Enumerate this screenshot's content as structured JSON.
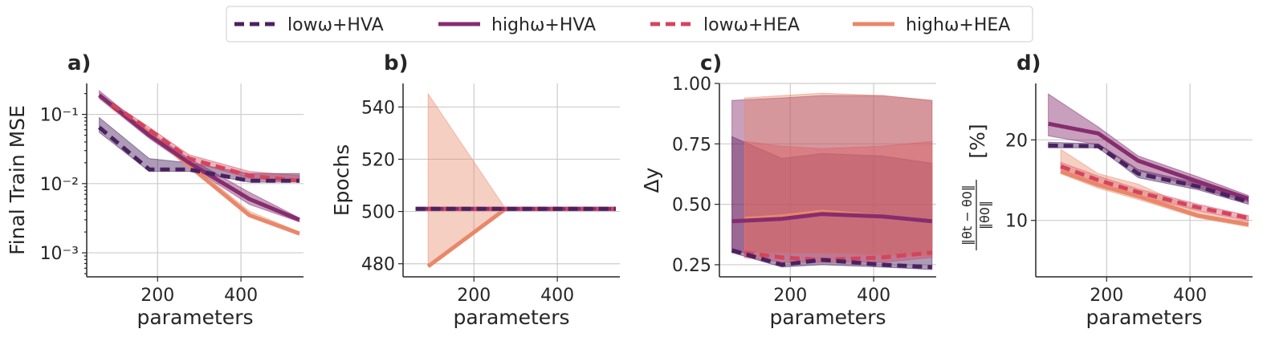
{
  "legend": [
    {
      "series": "lowHVA",
      "label": "lowω+HVA",
      "color": "#4a2260",
      "dashed": true
    },
    {
      "series": "highHVA",
      "label": "highω+HVA",
      "color": "#862d6e",
      "dashed": false
    },
    {
      "series": "lowHEA",
      "label": "lowω+HEA",
      "color": "#d4445e",
      "dashed": true
    },
    {
      "series": "highHEA",
      "label": "highω+HEA",
      "color": "#e9876a",
      "dashed": false
    }
  ],
  "chart_data": [
    {
      "panel": "a)",
      "type": "line",
      "ylabel": "Final Train MSE",
      "xlabel": "parameters",
      "yscale": "log",
      "xlim": [
        30,
        550
      ],
      "ylim": [
        0.00045,
        0.28
      ],
      "xticks": [
        200,
        400
      ],
      "xtick_labels": [
        "200",
        "400"
      ],
      "yticks": [
        0.1,
        0.01,
        0.001
      ],
      "ytick_labels": [
        "10⁻¹",
        "10⁻²",
        "10⁻³"
      ],
      "series": [
        {
          "name": "lowHVA",
          "x": [
            60,
            180,
            276,
            420,
            540
          ],
          "y": [
            0.065,
            0.016,
            0.016,
            0.011,
            0.011
          ],
          "lo": [
            0.055,
            0.015,
            0.015,
            0.0105,
            0.0105
          ],
          "hi": [
            0.09,
            0.023,
            0.02,
            0.014,
            0.014
          ]
        },
        {
          "name": "highHVA",
          "x": [
            60,
            180,
            276,
            420,
            540
          ],
          "y": [
            0.19,
            0.05,
            0.02,
            0.006,
            0.003
          ],
          "lo": [
            0.17,
            0.045,
            0.018,
            0.005,
            0.0028
          ],
          "hi": [
            0.22,
            0.056,
            0.023,
            0.0075,
            0.0032
          ]
        },
        {
          "name": "lowHEA",
          "x": [
            90,
            180,
            276,
            420,
            540
          ],
          "y": [
            0.14,
            0.06,
            0.023,
            0.013,
            0.011
          ],
          "lo": [
            0.13,
            0.055,
            0.021,
            0.012,
            0.0105
          ],
          "hi": [
            0.15,
            0.065,
            0.026,
            0.015,
            0.013
          ]
        },
        {
          "name": "highHEA",
          "x": [
            90,
            180,
            276,
            420,
            540
          ],
          "y": [
            0.13,
            0.055,
            0.018,
            0.0035,
            0.0019
          ],
          "lo": [
            0.12,
            0.05,
            0.017,
            0.0033,
            0.0018
          ],
          "hi": [
            0.14,
            0.06,
            0.02,
            0.004,
            0.002
          ]
        }
      ]
    },
    {
      "panel": "b)",
      "type": "line",
      "ylabel": "Epochs",
      "xlabel": "parameters",
      "yscale": "linear",
      "xlim": [
        30,
        550
      ],
      "ylim": [
        475,
        549
      ],
      "xticks": [
        200,
        400
      ],
      "xtick_labels": [
        "200",
        "400"
      ],
      "yticks": [
        480,
        500,
        520,
        540
      ],
      "ytick_labels": [
        "480",
        "500",
        "520",
        "540"
      ],
      "series": [
        {
          "name": "lowHVA",
          "x": [
            60,
            180,
            276,
            420,
            540
          ],
          "y": [
            501,
            501,
            501,
            501,
            501
          ]
        },
        {
          "name": "highHVA",
          "x": [
            60,
            180,
            276,
            420,
            540
          ],
          "y": [
            501,
            501,
            501,
            501,
            501
          ]
        },
        {
          "name": "lowHEA",
          "x": [
            90,
            180,
            276,
            420,
            540
          ],
          "y": [
            501,
            501,
            501,
            501,
            501
          ]
        },
        {
          "name": "highHEA",
          "x": [
            90,
            276,
            420,
            540
          ],
          "y": [
            479,
            501,
            501,
            501
          ],
          "lo": [
            479,
            501,
            501,
            501
          ],
          "hi": [
            545,
            501,
            501,
            501
          ]
        }
      ]
    },
    {
      "panel": "c)",
      "type": "line",
      "ylabel": "Δy",
      "xlabel": "parameters",
      "yscale": "linear",
      "xlim": [
        30,
        550
      ],
      "ylim": [
        0.2,
        1.0
      ],
      "xticks": [
        200,
        400
      ],
      "xtick_labels": [
        "200",
        "400"
      ],
      "yticks": [
        0.25,
        0.5,
        0.75,
        1.0
      ],
      "ytick_labels": [
        "0.25",
        "0.50",
        "0.75",
        "1.00"
      ],
      "series": [
        {
          "name": "lowHVA",
          "x": [
            60,
            180,
            276,
            420,
            540
          ],
          "y": [
            0.31,
            0.25,
            0.27,
            0.25,
            0.24
          ],
          "lo": [
            0.3,
            0.24,
            0.25,
            0.24,
            0.23
          ],
          "hi": [
            0.78,
            0.69,
            0.71,
            0.7,
            0.67
          ]
        },
        {
          "name": "highHVA",
          "x": [
            60,
            180,
            276,
            420,
            540
          ],
          "y": [
            0.43,
            0.44,
            0.46,
            0.45,
            0.43
          ],
          "lo": [
            0.3,
            0.3,
            0.3,
            0.29,
            0.29
          ],
          "hi": [
            0.93,
            0.94,
            0.95,
            0.95,
            0.93
          ]
        },
        {
          "name": "lowHEA",
          "x": [
            90,
            180,
            276,
            420,
            540
          ],
          "y": [
            0.3,
            0.28,
            0.27,
            0.28,
            0.3
          ],
          "lo": [
            0.28,
            0.26,
            0.26,
            0.26,
            0.28
          ],
          "hi": [
            0.76,
            0.74,
            0.73,
            0.74,
            0.76
          ]
        },
        {
          "name": "highHEA",
          "x": [
            90,
            180,
            276,
            420,
            540
          ],
          "y": [
            0.44,
            0.45,
            0.47,
            0.45,
            0.43
          ],
          "lo": [
            0.3,
            0.3,
            0.3,
            0.29,
            0.29
          ],
          "hi": [
            0.94,
            0.95,
            0.96,
            0.95,
            0.93
          ]
        }
      ]
    },
    {
      "panel": "d)",
      "type": "line",
      "ylabel": "[%]",
      "ylabel_math": {
        "num": "‖θt − θ0‖",
        "den": "‖θ0‖"
      },
      "xlabel": "parameters",
      "yscale": "linear",
      "xlim": [
        30,
        550
      ],
      "ylim": [
        3,
        27
      ],
      "xticks": [
        200,
        400
      ],
      "xtick_labels": [
        "200",
        "400"
      ],
      "yticks": [
        10,
        20
      ],
      "ytick_labels": [
        "10",
        "20"
      ],
      "series": [
        {
          "name": "lowHVA",
          "x": [
            60,
            180,
            276,
            420,
            540
          ],
          "y": [
            19.3,
            19.2,
            15.8,
            14.2,
            12.3
          ],
          "lo": [
            19.0,
            19.0,
            15.3,
            13.8,
            12.0
          ],
          "hi": [
            19.7,
            19.5,
            16.3,
            14.6,
            12.6
          ]
        },
        {
          "name": "highHVA",
          "x": [
            60,
            180,
            276,
            420,
            540
          ],
          "y": [
            22.0,
            20.8,
            17.4,
            14.8,
            12.7
          ],
          "lo": [
            20.5,
            19.4,
            16.2,
            14.0,
            12.3
          ],
          "hi": [
            25.7,
            21.6,
            18.0,
            15.4,
            13.1
          ]
        },
        {
          "name": "lowHEA",
          "x": [
            90,
            180,
            276,
            420,
            540
          ],
          "y": [
            16.7,
            15.0,
            13.5,
            11.6,
            10.3
          ],
          "lo": [
            16.3,
            14.6,
            13.1,
            11.2,
            10.0
          ],
          "hi": [
            17.2,
            15.5,
            13.9,
            12.0,
            10.6
          ]
        },
        {
          "name": "highHEA",
          "x": [
            90,
            180,
            276,
            420,
            540
          ],
          "y": [
            16.1,
            14.4,
            13.0,
            10.6,
            9.5
          ],
          "lo": [
            15.8,
            14.0,
            12.6,
            10.3,
            9.2
          ],
          "hi": [
            18.8,
            15.8,
            14.5,
            11.2,
            9.9
          ]
        }
      ]
    }
  ]
}
